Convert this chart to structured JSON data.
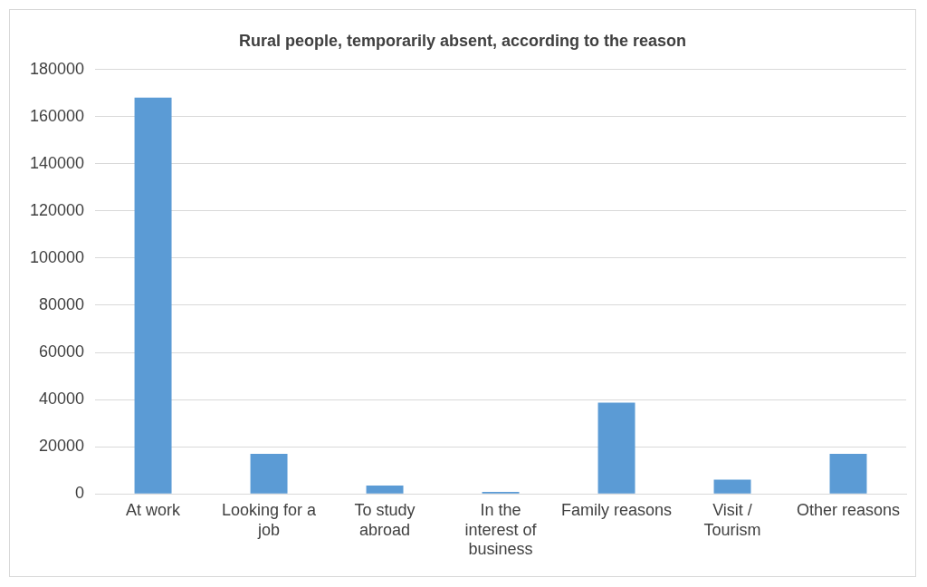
{
  "chart_data": {
    "type": "bar",
    "title": "Rural people, temporarily absent, according to the reason",
    "categories": [
      "At work",
      "Looking for a job",
      "To study abroad",
      "In the interest of business",
      "Family reasons",
      "Visit / Tourism",
      "Other reasons"
    ],
    "values": [
      168000,
      17000,
      3500,
      800,
      38700,
      6000,
      17000
    ],
    "color": "#5b9bd5",
    "ylim": [
      0,
      180000
    ],
    "yticks": [
      0,
      20000,
      40000,
      60000,
      80000,
      100000,
      120000,
      140000,
      160000,
      180000
    ],
    "grid": "y",
    "legend": false
  }
}
